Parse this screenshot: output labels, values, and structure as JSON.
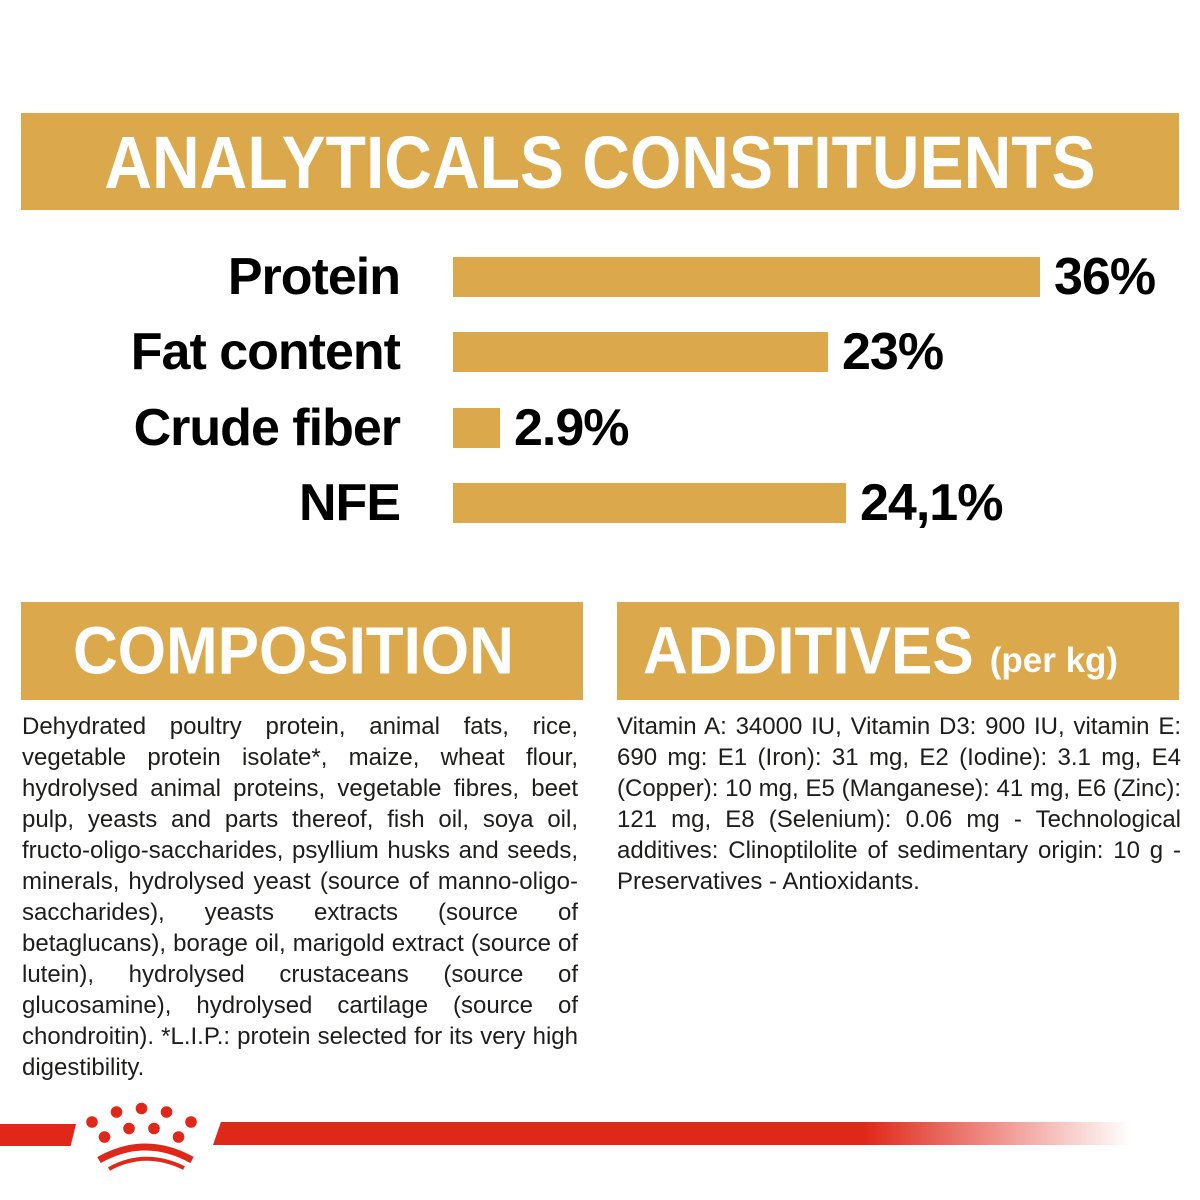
{
  "chart_data": {
    "type": "bar",
    "orientation": "horizontal",
    "title": "ANALYTICALS CONSTITUENTS",
    "categories": [
      "Protein",
      "Fat content",
      "Crude fiber",
      "NFE"
    ],
    "values": [
      36,
      23,
      2.9,
      24.1
    ],
    "value_labels": [
      "36%",
      "23%",
      "2.9%",
      "24,1%"
    ],
    "unit": "%",
    "xlim": [
      0,
      36
    ],
    "bar_color": "#DBA84B",
    "label_color": "#000000",
    "grid": false,
    "legend": false
  },
  "composition": {
    "title": "COMPOSITION",
    "body": "Dehydrated poultry protein, animal fats, rice, vegetable protein isolate*, maize, wheat flour, hydrolysed animal proteins, vegetable fibres, beet pulp, yeasts and parts thereof, fish oil, soya oil, fructo-oligo-saccharides, psyllium husks and seeds, minerals, hydrolysed yeast (source of manno-oligo-saccharides), yeasts extracts (source of betaglucans), borage oil, marigold extract (source of lutein), hydrolysed crustaceans (source of glucosamine), hydrolysed cartilage (source of chondroitin). *L.I.P.: protein selected for its very high digestibility."
  },
  "additives": {
    "title": "ADDITIVES",
    "unit_label": "(per kg)",
    "body": "Vitamin A: 34000 IU, Vitamin D3: 900 IU, vitamin E: 690 mg: E1 (Iron): 31 mg, E2 (Iodine): 3.1 mg, E4 (Copper): 10 mg, E5 (Manganese): 41 mg, E6 (Zinc): 121 mg, E8 (Selenium): 0.06 mg - Technological additives: Clinoptilolite of sedimentary origin: 10 g - Preservatives - Antioxidants."
  },
  "logo": {
    "name": "Royal Canin crown",
    "color": "#E0281A"
  },
  "colors": {
    "gold": "#DBA84B",
    "red": "#E0281A",
    "body_text": "#1d1d1b"
  }
}
